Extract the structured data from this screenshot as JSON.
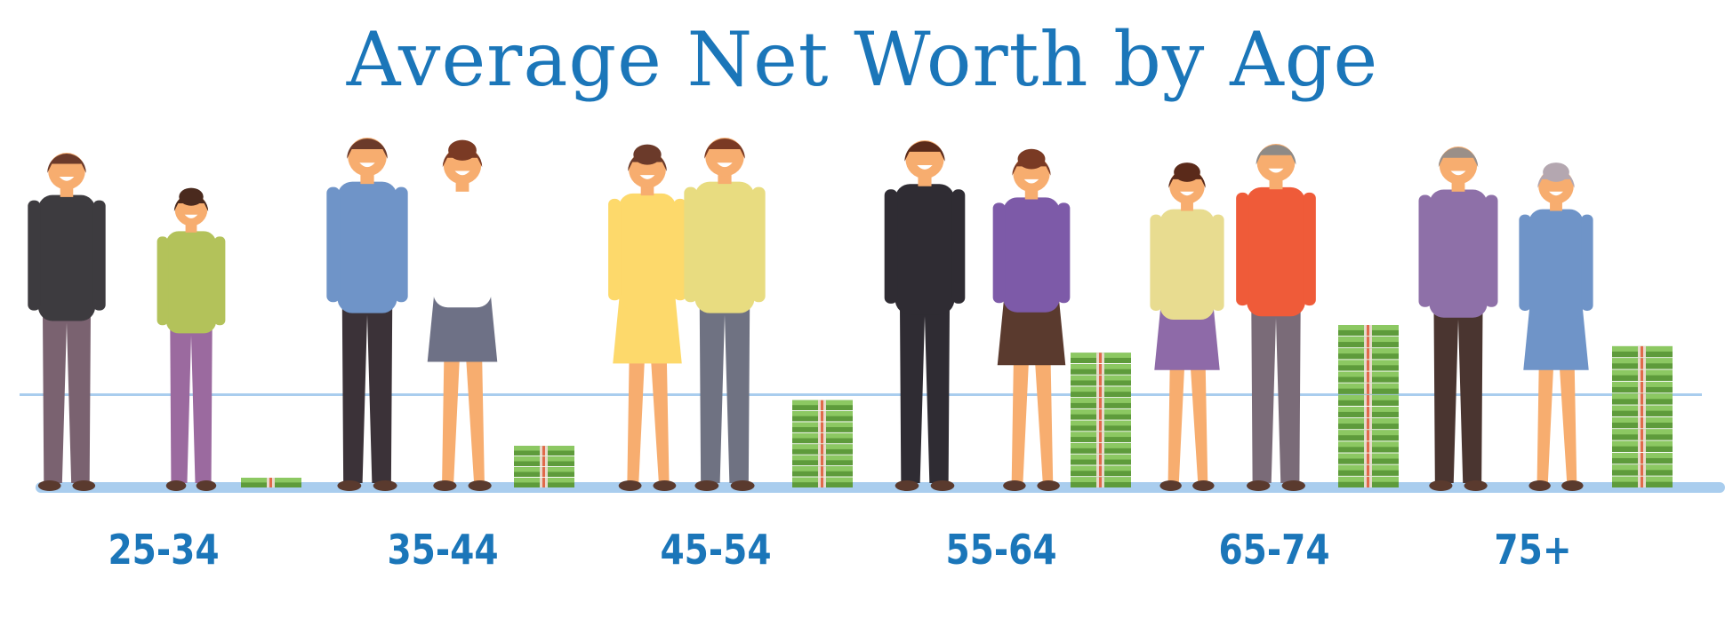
{
  "title": "Average Net Worth by Age",
  "colors": {
    "accent": "#1b76b9",
    "line": "#a9cdee",
    "money": "#6aaa45"
  },
  "groups": [
    {
      "label": "25-34",
      "money_level": 0.06,
      "money-icon": "cash-stack-icon"
    },
    {
      "label": "35-44",
      "money_level": 0.26,
      "money-icon": "cash-stack-icon"
    },
    {
      "label": "45-54",
      "money_level": 0.54,
      "money-icon": "cash-stack-icon"
    },
    {
      "label": "55-64",
      "money_level": 0.83,
      "money-icon": "cash-stack-icon"
    },
    {
      "label": "65-74",
      "money_level": 1.0,
      "money-icon": "cash-stack-icon"
    },
    {
      "label": "75+",
      "money_level": 0.87,
      "money-icon": "cash-stack-icon"
    }
  ]
}
